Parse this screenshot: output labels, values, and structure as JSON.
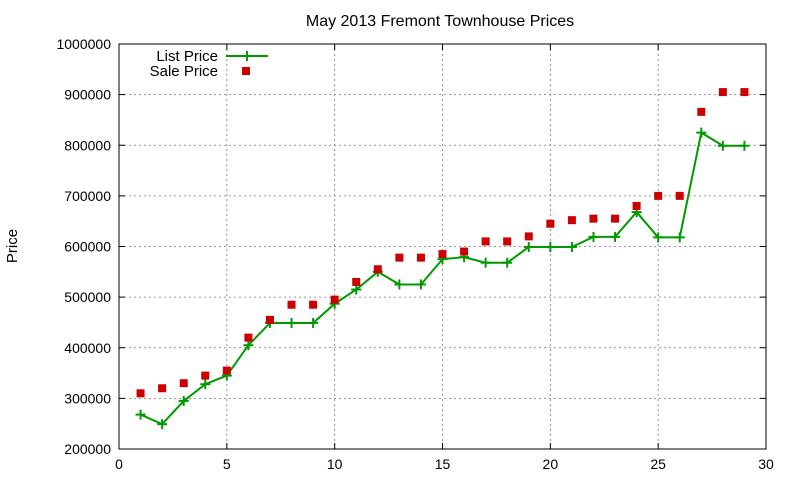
{
  "chart_data": {
    "type": "scatter",
    "title": "May 2013 Fremont Townhouse Prices",
    "xlabel": "",
    "ylabel": "Price",
    "xlim": [
      0,
      30
    ],
    "ylim": [
      200000,
      1000000
    ],
    "x_ticks": [
      0,
      5,
      10,
      15,
      20,
      25,
      30
    ],
    "y_ticks": [
      200000,
      300000,
      400000,
      500000,
      600000,
      700000,
      800000,
      900000,
      1000000
    ],
    "grid": true,
    "legend_position": "top-left",
    "series": [
      {
        "name": "List Price",
        "style": "line-with-plus-markers",
        "color": "#009900",
        "x": [
          1,
          2,
          3,
          4,
          5,
          6,
          7,
          8,
          9,
          10,
          11,
          12,
          13,
          14,
          15,
          16,
          17,
          18,
          19,
          20,
          21,
          22,
          23,
          24,
          25,
          26,
          27,
          28,
          29
        ],
        "values": [
          268000,
          249000,
          295000,
          328000,
          345000,
          405000,
          449000,
          449000,
          449000,
          487000,
          515000,
          550000,
          525000,
          525000,
          575000,
          579000,
          568000,
          568000,
          599000,
          599000,
          599000,
          619000,
          619000,
          668000,
          618000,
          618000,
          825000,
          799000,
          799000
        ]
      },
      {
        "name": "Sale Price",
        "style": "square-markers",
        "color": "#cc0000",
        "x": [
          1,
          2,
          3,
          4,
          5,
          6,
          7,
          8,
          9,
          10,
          11,
          12,
          13,
          14,
          15,
          16,
          17,
          18,
          19,
          20,
          21,
          22,
          23,
          24,
          25,
          26,
          27,
          28,
          29
        ],
        "values": [
          310000,
          320000,
          330000,
          345000,
          355000,
          420000,
          455000,
          485000,
          485000,
          495000,
          530000,
          555000,
          578000,
          578000,
          585000,
          590000,
          610000,
          610000,
          620000,
          645000,
          652000,
          655000,
          655000,
          680000,
          700000,
          700000,
          866000,
          905000,
          905000
        ]
      }
    ]
  }
}
